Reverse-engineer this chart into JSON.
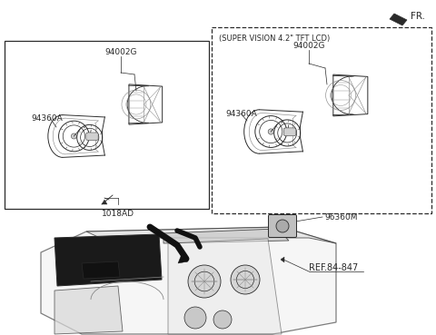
{
  "bg_color": "#ffffff",
  "lc": "#2a2a2a",
  "lc_light": "#888888",
  "fs_label": 6.5,
  "fs_sv": 6.0,
  "fs_fr": 7.5,
  "fr_label": "FR.",
  "sv_label": "(SUPER VISION 4.2\" TFT LCD)",
  "label_94002G_left": "94002G",
  "label_94002G_right": "94002G",
  "label_94360A_left": "94360A",
  "label_94360A_right": "94360A",
  "label_1018AD": "1018AD",
  "label_96360M": "96360M",
  "label_ref": "REF.84-847"
}
